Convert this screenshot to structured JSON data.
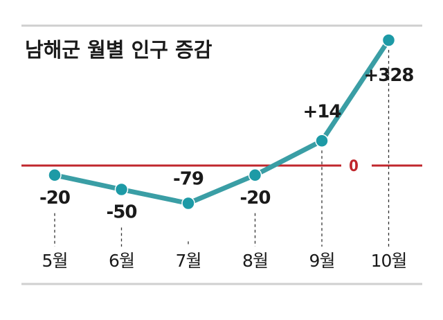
{
  "chart_data": {
    "type": "line",
    "title": "남해군 월별 인구 증감",
    "categories": [
      "5월",
      "6월",
      "7월",
      "8월",
      "9월",
      "10월"
    ],
    "values": [
      -20,
      -50,
      -79,
      -20,
      14,
      328
    ],
    "value_labels": [
      "-20",
      "-50",
      "-79",
      "-20",
      "+14",
      "+328"
    ],
    "zero_label": "0",
    "ylim": [
      -100,
      340
    ],
    "grid": false,
    "colors": {
      "line": "#3a9ea5",
      "point": "#1d9aa6",
      "zero_line": "#c0262c",
      "text": "#1a1a1a",
      "rule": "#cfcfcf"
    }
  }
}
